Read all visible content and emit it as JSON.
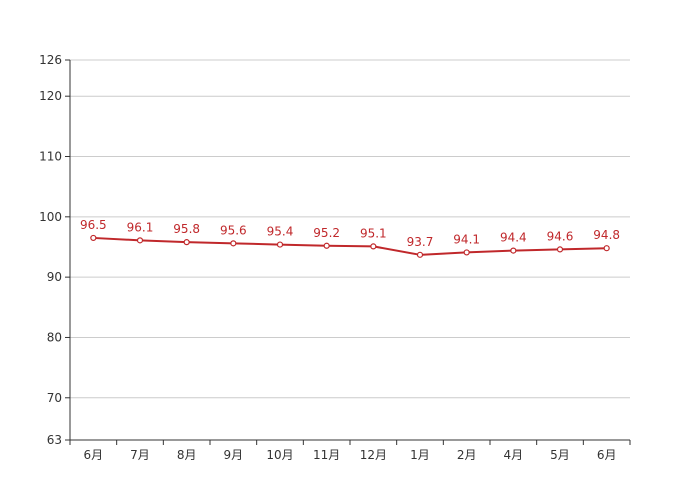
{
  "chart_data": {
    "type": "line",
    "categories": [
      "6月",
      "7月",
      "8月",
      "9月",
      "10月",
      "11月",
      "12月",
      "1月",
      "2月",
      "4月",
      "5月",
      "6月"
    ],
    "series": [
      {
        "values": [
          96.5,
          96.1,
          95.8,
          95.6,
          95.4,
          95.2,
          95.1,
          93.7,
          94.1,
          94.4,
          94.6,
          94.8
        ]
      }
    ],
    "ylim": [
      63,
      126
    ],
    "yticks": [
      63,
      70,
      80,
      90,
      100,
      110,
      120,
      126
    ],
    "grid": true,
    "line_color": "#c0282b",
    "label_color": "#c0282b",
    "title": "",
    "xlabel": "",
    "ylabel": ""
  }
}
